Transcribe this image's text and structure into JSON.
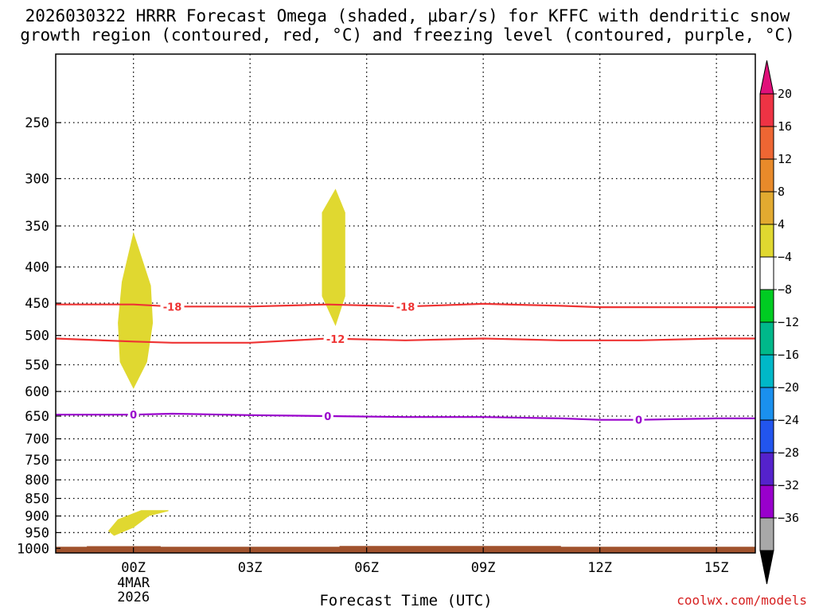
{
  "title": "2026030322 HRRR Forecast Omega (shaded, μbar/s) for KFFC with dendritic snow\ngrowth region (contoured, red, °C) and freezing level (contoured, purple, °C)",
  "credit": "coolwx.com/models",
  "colors": {
    "ground": "#a0522d",
    "dendritic_contour": "#ee3333",
    "freezing_contour": "#9900cc",
    "omega_fill": "#e0d830"
  },
  "chart_data": {
    "type": "heatmap",
    "xlabel": "Forecast Time (UTC)",
    "x_ticks": [
      {
        "hour": 0,
        "label": "00Z",
        "sub": [
          "4MAR",
          "2026"
        ]
      },
      {
        "hour": 3,
        "label": "03Z"
      },
      {
        "hour": 6,
        "label": "06Z"
      },
      {
        "hour": 9,
        "label": "09Z"
      },
      {
        "hour": 12,
        "label": "12Z"
      },
      {
        "hour": 15,
        "label": "15Z"
      }
    ],
    "xlim": [
      -2,
      16
    ],
    "ylabel": "",
    "y_scale": "log-pressure",
    "ylim": [
      1015,
      200
    ],
    "y_ticks": [
      250,
      300,
      350,
      400,
      450,
      500,
      550,
      600,
      650,
      700,
      750,
      800,
      850,
      900,
      950,
      1000
    ],
    "grid": true,
    "omega_regions": [
      {
        "value_range": [
          4,
          8
        ],
        "points": [
          [
            0,
            357
          ],
          [
            0.45,
            425
          ],
          [
            0.5,
            480
          ],
          [
            0.35,
            545
          ],
          [
            0,
            595
          ],
          [
            -0.35,
            545
          ],
          [
            -0.4,
            480
          ],
          [
            -0.3,
            420
          ]
        ]
      },
      {
        "value_range": [
          4,
          8
        ],
        "points": [
          [
            5.2,
            310
          ],
          [
            5.45,
            335
          ],
          [
            5.45,
            440
          ],
          [
            5.2,
            485
          ],
          [
            4.85,
            440
          ],
          [
            4.85,
            335
          ]
        ]
      },
      {
        "value_range": [
          4,
          8
        ],
        "points": [
          [
            -0.65,
            945
          ],
          [
            -0.4,
            910
          ],
          [
            0.2,
            883
          ],
          [
            0.9,
            883
          ],
          [
            0.9,
            886
          ],
          [
            0.4,
            900
          ],
          [
            0,
            935
          ],
          [
            -0.5,
            960
          ]
        ]
      }
    ],
    "contours": [
      {
        "name": "-18",
        "group": "dendritic",
        "label_hours": [
          1,
          7
        ],
        "x": [
          -2,
          0,
          1,
          3,
          5,
          7,
          9,
          11,
          12,
          14,
          16
        ],
        "y": [
          452,
          452,
          455,
          455,
          452,
          455,
          451,
          454,
          456,
          456,
          456
        ]
      },
      {
        "name": "-12",
        "group": "dendritic",
        "label_hours": [
          5.2
        ],
        "x": [
          -2,
          0,
          1,
          3,
          5,
          7,
          9,
          11,
          13,
          15,
          16
        ],
        "y": [
          505,
          510,
          512,
          512,
          505,
          508,
          505,
          508,
          508,
          505,
          505
        ]
      },
      {
        "name": "0",
        "group": "freezing",
        "label_hours": [
          0,
          5,
          13
        ],
        "x": [
          -2,
          0,
          1,
          3,
          5,
          7,
          9,
          11,
          12,
          13,
          15,
          16
        ],
        "y": [
          647,
          647,
          645,
          648,
          650,
          652,
          652,
          655,
          658,
          658,
          655,
          655
        ]
      }
    ],
    "ground": {
      "x": [
        -2,
        -1.2,
        -1.2,
        0.7,
        0.7,
        5.3,
        5.3,
        11,
        11,
        16
      ],
      "y": [
        995,
        995,
        993,
        993,
        995,
        995,
        992,
        992,
        995,
        995
      ]
    },
    "colorbar": {
      "title": "",
      "ticks": [
        "20",
        "16",
        "12",
        "8",
        "4",
        "−4",
        "−8",
        "−12",
        "−16",
        "−20",
        "−24",
        "−28",
        "−32",
        "−36"
      ],
      "colors": [
        "#ee3344",
        "#ee6633",
        "#e88a2a",
        "#e2aa30",
        "#e0d830",
        "#ffffff",
        "#00cc22",
        "#00b88a",
        "#00b8c8",
        "#1a90ee",
        "#2255ee",
        "#5522cc",
        "#9900cc",
        "#a8a8a8"
      ],
      "over_color": "#e0107a",
      "under_color": "#000000"
    }
  }
}
